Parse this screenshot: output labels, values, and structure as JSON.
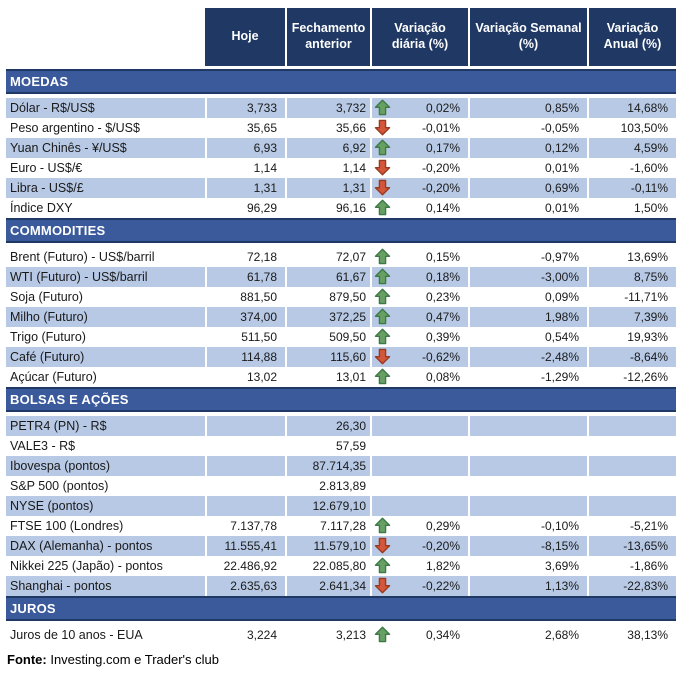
{
  "chart_data": {
    "type": "table",
    "columns": [
      "Hoje",
      "Fechamento anterior",
      "Variação diária (%)",
      "Variação Semanal (%)",
      "Variação Anual (%)"
    ],
    "sections": [
      {
        "title": "MOEDAS",
        "rows": [
          {
            "label": "Dólar - R$/US$",
            "hoje": "3,733",
            "fechamento": "3,732",
            "trend": "up",
            "diaria": "0,02%",
            "semanal": "0,85%",
            "anual": "14,68%",
            "shaded": true
          },
          {
            "label": "Peso argentino - $/US$",
            "hoje": "35,65",
            "fechamento": "35,66",
            "trend": "down",
            "diaria": "-0,01%",
            "semanal": "-0,05%",
            "anual": "103,50%",
            "shaded": false
          },
          {
            "label": "Yuan Chinês - ¥/US$",
            "hoje": "6,93",
            "fechamento": "6,92",
            "trend": "up",
            "diaria": "0,17%",
            "semanal": "0,12%",
            "anual": "4,59%",
            "shaded": true
          },
          {
            "label": "Euro - US$/€",
            "hoje": "1,14",
            "fechamento": "1,14",
            "trend": "down",
            "diaria": "-0,20%",
            "semanal": "0,01%",
            "anual": "-1,60%",
            "shaded": false
          },
          {
            "label": "Libra - US$/£",
            "hoje": "1,31",
            "fechamento": "1,31",
            "trend": "down",
            "diaria": "-0,20%",
            "semanal": "0,69%",
            "anual": "-0,11%",
            "shaded": true
          },
          {
            "label": "Índice DXY",
            "hoje": "96,29",
            "fechamento": "96,16",
            "trend": "up",
            "diaria": "0,14%",
            "semanal": "0,01%",
            "anual": "1,50%",
            "shaded": false
          }
        ]
      },
      {
        "title": "COMMODITIES",
        "rows": [
          {
            "label": "Brent (Futuro) - US$/barril",
            "hoje": "72,18",
            "fechamento": "72,07",
            "trend": "up",
            "diaria": "0,15%",
            "semanal": "-0,97%",
            "anual": "13,69%",
            "shaded": false
          },
          {
            "label": "WTI (Futuro) - US$/barril",
            "hoje": "61,78",
            "fechamento": "61,67",
            "trend": "up",
            "diaria": "0,18%",
            "semanal": "-3,00%",
            "anual": "8,75%",
            "shaded": true
          },
          {
            "label": "Soja (Futuro)",
            "hoje": "881,50",
            "fechamento": "879,50",
            "trend": "up",
            "diaria": "0,23%",
            "semanal": "0,09%",
            "anual": "-11,71%",
            "shaded": false
          },
          {
            "label": "Milho (Futuro)",
            "hoje": "374,00",
            "fechamento": "372,25",
            "trend": "up",
            "diaria": "0,47%",
            "semanal": "1,98%",
            "anual": "7,39%",
            "shaded": true
          },
          {
            "label": "Trigo (Futuro)",
            "hoje": "511,50",
            "fechamento": "509,50",
            "trend": "up",
            "diaria": "0,39%",
            "semanal": "0,54%",
            "anual": "19,93%",
            "shaded": false
          },
          {
            "label": "Café (Futuro)",
            "hoje": "114,88",
            "fechamento": "115,60",
            "trend": "down",
            "diaria": "-0,62%",
            "semanal": "-2,48%",
            "anual": "-8,64%",
            "shaded": true
          },
          {
            "label": "Açúcar (Futuro)",
            "hoje": "13,02",
            "fechamento": "13,01",
            "trend": "up",
            "diaria": "0,08%",
            "semanal": "-1,29%",
            "anual": "-12,26%",
            "shaded": false
          }
        ]
      },
      {
        "title": "BOLSAS E AÇÕES",
        "rows": [
          {
            "label": "PETR4 (PN) - R$",
            "hoje": "",
            "fechamento": "26,30",
            "trend": "",
            "diaria": "",
            "semanal": "",
            "anual": "",
            "shaded": true
          },
          {
            "label": "VALE3 - R$",
            "hoje": "",
            "fechamento": "57,59",
            "trend": "",
            "diaria": "",
            "semanal": "",
            "anual": "",
            "shaded": false
          },
          {
            "label": "Ibovespa (pontos)",
            "hoje": "",
            "fechamento": "87.714,35",
            "trend": "",
            "diaria": "",
            "semanal": "",
            "anual": "",
            "shaded": true
          },
          {
            "label": "S&P 500 (pontos)",
            "hoje": "",
            "fechamento": "2.813,89",
            "trend": "",
            "diaria": "",
            "semanal": "",
            "anual": "",
            "shaded": false
          },
          {
            "label": "NYSE (pontos)",
            "hoje": "",
            "fechamento": "12.679,10",
            "trend": "",
            "diaria": "",
            "semanal": "",
            "anual": "",
            "shaded": true
          },
          {
            "label": "FTSE 100 (Londres)",
            "hoje": "7.137,78",
            "fechamento": "7.117,28",
            "trend": "up",
            "diaria": "0,29%",
            "semanal": "-0,10%",
            "anual": "-5,21%",
            "shaded": false
          },
          {
            "label": "DAX (Alemanha) - pontos",
            "hoje": "11.555,41",
            "fechamento": "11.579,10",
            "trend": "down",
            "diaria": "-0,20%",
            "semanal": "-8,15%",
            "anual": "-13,65%",
            "shaded": true
          },
          {
            "label": "Nikkei 225 (Japão) - pontos",
            "hoje": "22.486,92",
            "fechamento": "22.085,80",
            "trend": "up",
            "diaria": "1,82%",
            "semanal": "3,69%",
            "anual": "-1,86%",
            "shaded": false
          },
          {
            "label": "Shanghai - pontos",
            "hoje": "2.635,63",
            "fechamento": "2.641,34",
            "trend": "down",
            "diaria": "-0,22%",
            "semanal": "1,13%",
            "anual": "-22,83%",
            "shaded": true
          }
        ]
      },
      {
        "title": "JUROS",
        "rows": [
          {
            "label": "Juros de 10 anos - EUA",
            "hoje": "3,224",
            "fechamento": "3,213",
            "trend": "up",
            "diaria": "0,34%",
            "semanal": "2,68%",
            "anual": "38,13%",
            "shaded": false
          }
        ]
      }
    ]
  },
  "footer": {
    "source_label": "Fonte:",
    "source_text": " Investing.com e Trader's club"
  },
  "colors": {
    "page_bg": "#FFFFFF",
    "header_bg": "#1F3864",
    "header_text": "#FFFFFF",
    "section_bg": "#3A5A9B",
    "row_shade": "#B7C9E5",
    "text": "#1A1A1A",
    "arrow_up_fill": "#68A063",
    "arrow_up_stroke": "#3E7A49",
    "arrow_down_fill": "#D2573B",
    "arrow_down_stroke": "#9A3A22"
  }
}
